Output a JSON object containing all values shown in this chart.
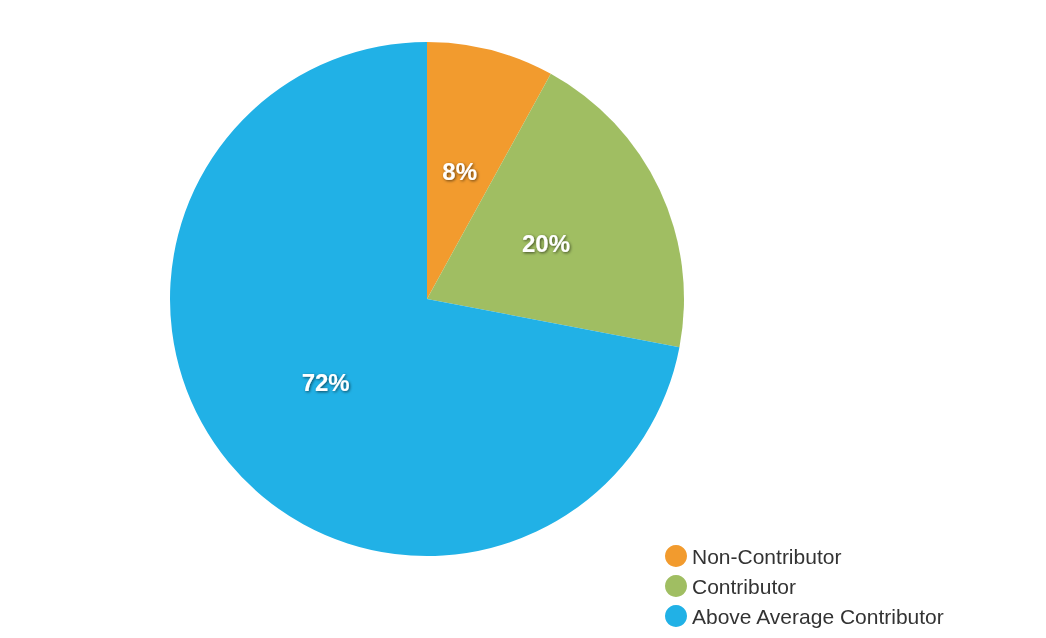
{
  "chart_data": {
    "type": "pie",
    "categories": [
      "Non-Contributor",
      "Contributor",
      "Above Average Contributor"
    ],
    "values": [
      8,
      20,
      72
    ],
    "colors": [
      "#f29b2e",
      "#a0be62",
      "#21b1e6"
    ],
    "value_labels": [
      "8%",
      "20%",
      "72%"
    ],
    "legend": "bottom right"
  }
}
